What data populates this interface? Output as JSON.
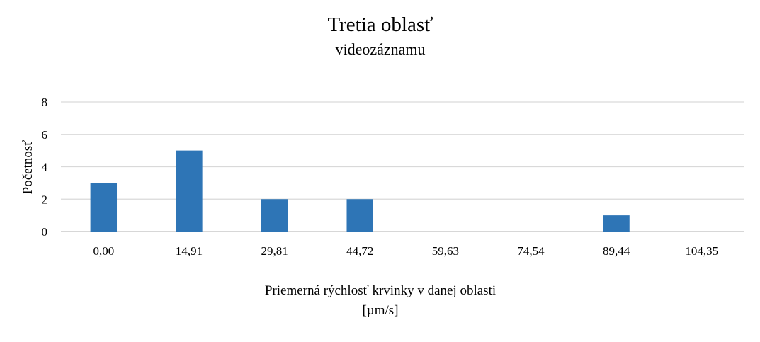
{
  "chart_data": {
    "type": "bar",
    "title": "Tretia oblasť",
    "subtitle": "videozáznamu",
    "xlabel": "Priemerná rýchlosť krvinky v danej oblasti",
    "xlabel_unit": "[µm/s]",
    "ylabel": "Početnosť",
    "categories": [
      "0,00",
      "14,91",
      "29,81",
      "44,72",
      "59,63",
      "74,54",
      "89,44",
      "104,35"
    ],
    "values": [
      3,
      5,
      2,
      2,
      0,
      0,
      1,
      0
    ],
    "ylim": [
      0,
      8
    ],
    "yticks": [
      "0",
      "2",
      "4",
      "6",
      "8"
    ],
    "grid": true,
    "legend": "none",
    "colors": {
      "bar": "#2e75b6",
      "grid": "#d9d9d9",
      "axis": "#bfbfbf"
    }
  }
}
